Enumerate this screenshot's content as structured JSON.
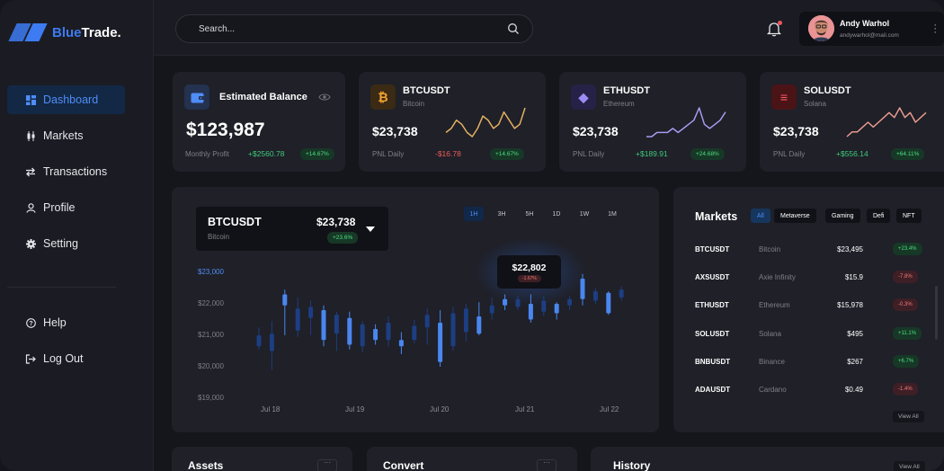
{
  "brand": {
    "name_part1": "Blue",
    "name_part2": "Trade."
  },
  "sidebar": {
    "items": [
      {
        "label": "Dashboard",
        "icon": "grid-icon",
        "active": true
      },
      {
        "label": "Markets",
        "icon": "candles-icon"
      },
      {
        "label": "Transactions",
        "icon": "swap-arrows-icon"
      },
      {
        "label": "Profile",
        "icon": "user-icon"
      },
      {
        "label": "Setting",
        "icon": "gear-icon"
      }
    ],
    "bottom_items": [
      {
        "label": "Help",
        "icon": "question-icon"
      },
      {
        "label": "Log Out",
        "icon": "logout-icon"
      }
    ]
  },
  "header": {
    "search_placeholder": "Search...",
    "user": {
      "name": "Andy Warhol",
      "email": "andywarhol@mail.com"
    }
  },
  "balance": {
    "title": "Estimated Balance",
    "amount": "$123,987",
    "profit_label": "Monthly Profit",
    "profit": "+$2560.78",
    "badge": "+14.67%"
  },
  "tickers": [
    {
      "symbol": "BTCUSDT",
      "name": "Bitcoin",
      "price": "$23,738",
      "pnl_label": "PNL Daily",
      "pnl": "-$16.78",
      "pnl_negative": true,
      "badge": "+14.67%",
      "icon_color": "#3b2a14",
      "glyph": "₿",
      "glyph_color": "#f7a531",
      "line_color": "#e3b062",
      "spark": [
        3,
        4,
        6,
        5,
        3,
        2,
        4,
        7,
        6,
        4,
        5,
        8,
        6,
        4,
        5,
        9
      ]
    },
    {
      "symbol": "ETHUSDT",
      "name": "Ethereum",
      "price": "$23,738",
      "pnl_label": "PNL Daily",
      "pnl": "+$189.91",
      "pnl_negative": false,
      "badge": "+24.68%",
      "icon_color": "#262146",
      "glyph": "◆",
      "glyph_color": "#9a8cf5",
      "line_color": "#a79af0",
      "spark": [
        2,
        2,
        3,
        3,
        3,
        4,
        3,
        4,
        5,
        6,
        9,
        5,
        4,
        5,
        6,
        8
      ]
    },
    {
      "symbol": "SOLUSDT",
      "name": "Solana",
      "price": "$23,738",
      "pnl_label": "PNL Daily",
      "pnl": "+$556.14",
      "pnl_negative": false,
      "badge": "+64.11%",
      "icon_color": "#4a1417",
      "glyph": "≡",
      "glyph_color": "#ff5a64",
      "line_color": "#e89a8e",
      "spark": [
        2,
        3,
        3,
        4,
        5,
        4,
        5,
        6,
        7,
        6,
        8,
        6,
        7,
        5,
        6,
        7
      ]
    }
  ],
  "main_chart": {
    "pair": "BTCUSDT",
    "name": "Bitcoin",
    "price": "$23,738",
    "badge": "+23.6%",
    "timeframes": [
      "1H",
      "3H",
      "5H",
      "1D",
      "1W",
      "1M"
    ],
    "active_timeframe": "1H",
    "tooltip_price": "$22,802",
    "tooltip_change": "-1.67%"
  },
  "chart_data": {
    "type": "candlestick",
    "y_ticks": [
      "$23,000",
      "$22,000",
      "$21,000",
      "$20,000",
      "$19,000"
    ],
    "x_ticks": [
      "Jul 18",
      "Jul 19",
      "Jul 20",
      "Jul 21",
      "Jul 22"
    ],
    "ylim": [
      19000,
      23300
    ],
    "candles": [
      {
        "low": 20550,
        "high": 21250,
        "open": 20650,
        "close": 21000,
        "bright": false
      },
      {
        "low": 19900,
        "high": 21450,
        "open": 21050,
        "close": 20500,
        "bright": false
      },
      {
        "low": 21000,
        "high": 22450,
        "open": 21950,
        "close": 22300,
        "bright": true
      },
      {
        "low": 20950,
        "high": 22200,
        "open": 21150,
        "close": 21850,
        "bright": false
      },
      {
        "low": 21000,
        "high": 22100,
        "open": 21900,
        "close": 21550,
        "bright": false
      },
      {
        "low": 20650,
        "high": 21950,
        "open": 20850,
        "close": 21800,
        "bright": true
      },
      {
        "low": 20500,
        "high": 21750,
        "open": 21050,
        "close": 21650,
        "bright": false
      },
      {
        "low": 20550,
        "high": 21750,
        "open": 21550,
        "close": 20700,
        "bright": true
      },
      {
        "low": 20450,
        "high": 21450,
        "open": 20650,
        "close": 21350,
        "bright": false
      },
      {
        "low": 20700,
        "high": 21350,
        "open": 20850,
        "close": 21200,
        "bright": true
      },
      {
        "low": 20650,
        "high": 21600,
        "open": 20850,
        "close": 21400,
        "bright": false
      },
      {
        "low": 20400,
        "high": 21100,
        "open": 20650,
        "close": 20850,
        "bright": true
      },
      {
        "low": 20750,
        "high": 21500,
        "open": 20850,
        "close": 21300,
        "bright": false
      },
      {
        "low": 20700,
        "high": 21850,
        "open": 21250,
        "close": 21650,
        "bright": false
      },
      {
        "low": 20000,
        "high": 21800,
        "open": 20150,
        "close": 21400,
        "bright": true
      },
      {
        "low": 20500,
        "high": 21900,
        "open": 20650,
        "close": 21700,
        "bright": false
      },
      {
        "low": 20800,
        "high": 22000,
        "open": 21100,
        "close": 21850,
        "bright": false
      },
      {
        "low": 21000,
        "high": 22050,
        "open": 21050,
        "close": 21600,
        "bright": true
      },
      {
        "low": 21500,
        "high": 22200,
        "open": 21700,
        "close": 21950,
        "bright": false
      },
      {
        "low": 21800,
        "high": 22300,
        "open": 21950,
        "close": 22150,
        "bright": true
      },
      {
        "low": 21800,
        "high": 22250,
        "open": 21900,
        "close": 22150,
        "bright": false
      },
      {
        "low": 21400,
        "high": 22300,
        "open": 22000,
        "close": 21500,
        "bright": true
      },
      {
        "low": 21600,
        "high": 22250,
        "open": 21750,
        "close": 22100,
        "bright": false
      },
      {
        "low": 21500,
        "high": 22050,
        "open": 21700,
        "close": 22000,
        "bright": true
      },
      {
        "low": 21800,
        "high": 22250,
        "open": 21950,
        "close": 22150,
        "bright": false
      },
      {
        "low": 21950,
        "high": 22950,
        "open": 22150,
        "close": 22800,
        "bright": true
      },
      {
        "low": 22000,
        "high": 22500,
        "open": 22100,
        "close": 22400,
        "bright": false
      },
      {
        "low": 21650,
        "high": 22400,
        "open": 21700,
        "close": 22350,
        "bright": true
      },
      {
        "low": 22100,
        "high": 22550,
        "open": 22200,
        "close": 22450,
        "bright": false
      }
    ]
  },
  "markets": {
    "title": "Markets",
    "tabs": [
      "All",
      "Metaverse",
      "Gaming",
      "Defi",
      "NFT"
    ],
    "active_tab": "All",
    "rows": [
      {
        "pair": "BTCUSDT",
        "name": "Bitcoin",
        "price": "$23,495",
        "change": "+23.4%",
        "positive": true
      },
      {
        "pair": "AXSUSDT",
        "name": "Axie Infinity",
        "price": "$15.9",
        "change": "-7.8%",
        "positive": false
      },
      {
        "pair": "ETHUSDT",
        "name": "Ethereum",
        "price": "$15,978",
        "change": "-0.3%",
        "positive": false
      },
      {
        "pair": "SOLUSDT",
        "name": "Solana",
        "price": "$495",
        "change": "+11.1%",
        "positive": true
      },
      {
        "pair": "BNBUSDT",
        "name": "Binance",
        "price": "$267",
        "change": "+6.7%",
        "positive": true
      },
      {
        "pair": "ADAUSDT",
        "name": "Cardano",
        "price": "$0.49",
        "change": "-1.4%",
        "positive": false
      }
    ],
    "view_all": "View All"
  },
  "bottom": {
    "assets": "Assets",
    "convert": "Convert",
    "history": "History",
    "view_all": "View All",
    "more": "···"
  }
}
